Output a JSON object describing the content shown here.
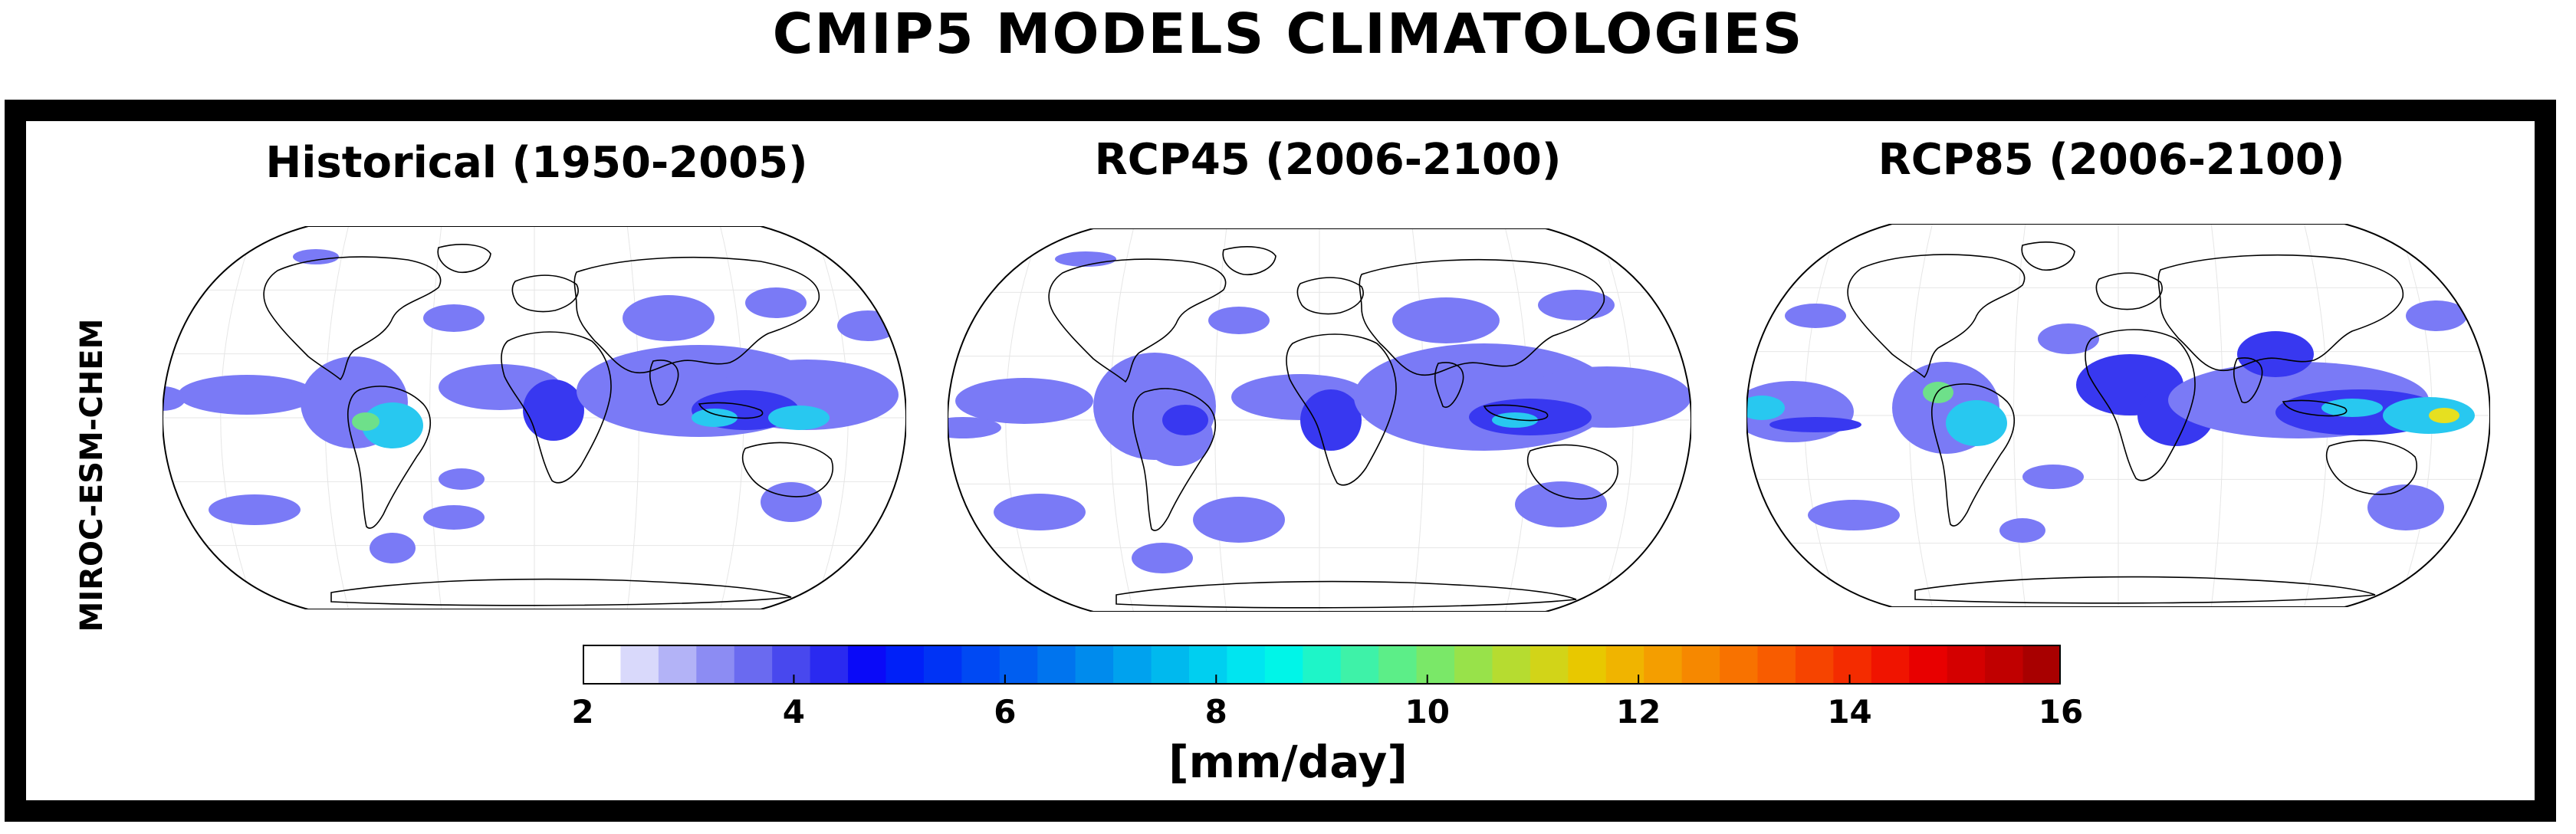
{
  "title": "CMIP5 MODELS CLIMATOLOGIES",
  "model": "MIROC-ESM-CHEM",
  "panels": [
    {
      "title": "Historical (1950-2005)"
    },
    {
      "title": "RCP45 (2006-2100)"
    },
    {
      "title": "RCP85 (2006-2100)"
    }
  ],
  "colorbar": {
    "min": 2,
    "max": 16,
    "ticks": [
      "2",
      "4",
      "6",
      "8",
      "10",
      "12",
      "14",
      "16"
    ],
    "units": "[mm/day]",
    "colors": [
      "#ffffff",
      "#d9d9fb",
      "#b3b3f7",
      "#8c8cf3",
      "#6a6af0",
      "#4848ee",
      "#2a2af0",
      "#0a0af8",
      "#0020f8",
      "#0033f5",
      "#0049f3",
      "#005ef0",
      "#0074ee",
      "#008bed",
      "#00a2ee",
      "#00b9ee",
      "#00cff0",
      "#00e5f0",
      "#00f5e8",
      "#1ef5c8",
      "#3ef2a8",
      "#5cee88",
      "#7ae868",
      "#98e24a",
      "#b6dc30",
      "#d2d418",
      "#e8c800",
      "#f0b400",
      "#f49e00",
      "#f68800",
      "#f87200",
      "#f85c00",
      "#f64400",
      "#f42c00",
      "#f01400",
      "#e80000",
      "#d40000",
      "#c00000",
      "#a80000"
    ]
  },
  "map_colors": {
    "light": "#7a7af6",
    "blue": "#3838f0",
    "cyan": "#28c8f0",
    "green": "#6ee08a",
    "yellow": "#e6e020",
    "red": "#d01010"
  }
}
